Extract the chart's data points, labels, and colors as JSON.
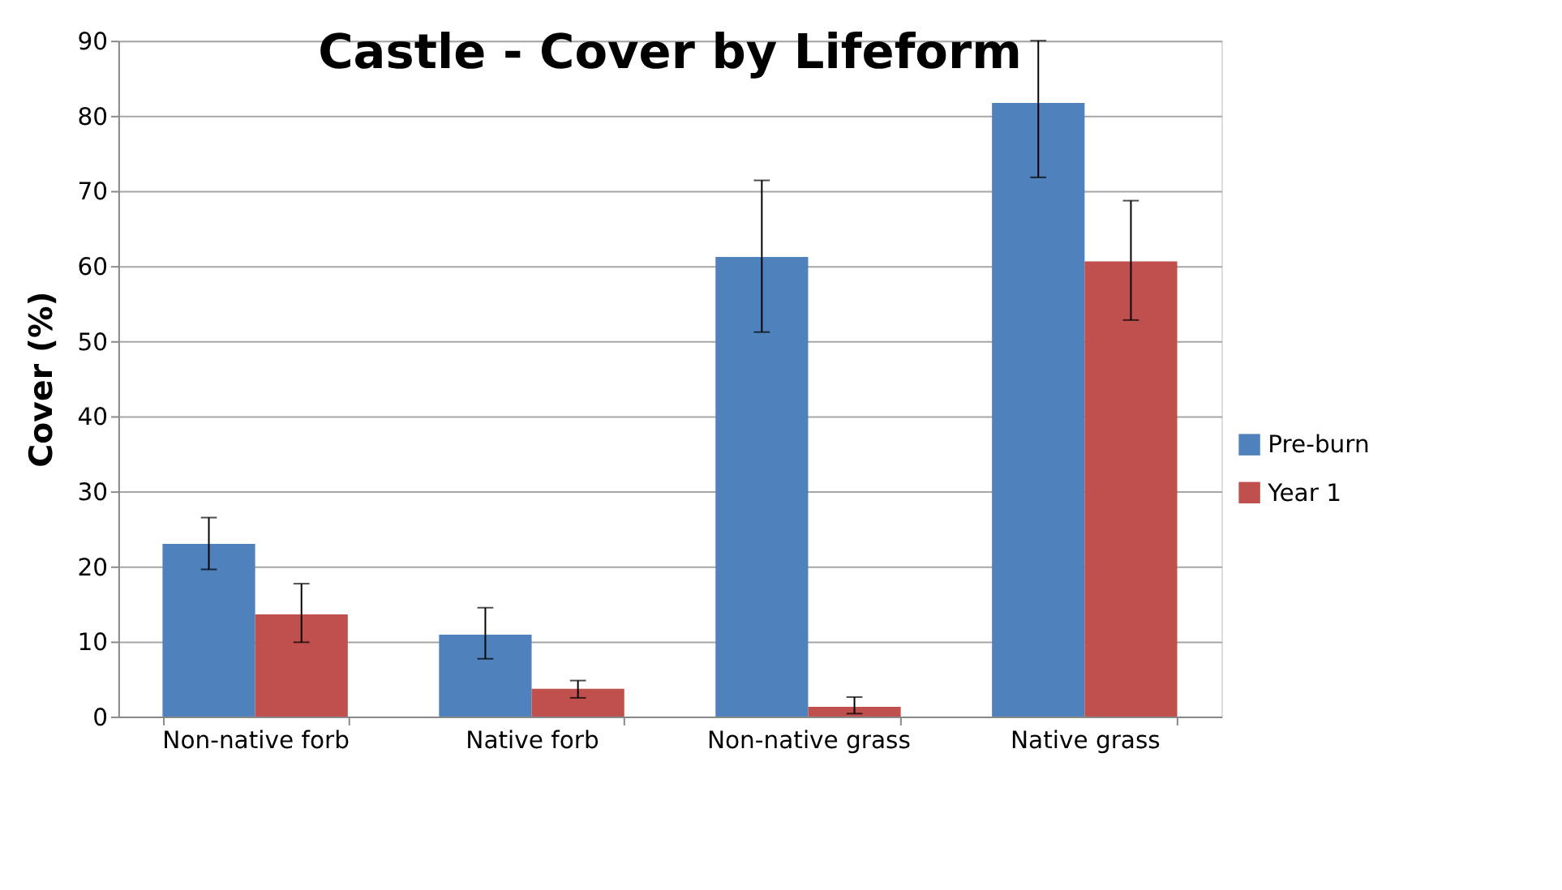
{
  "chart_data": {
    "type": "bar",
    "title": "Castle - Cover by Lifeform",
    "ylabel": "Cover (%)",
    "categories": [
      "Non-native forb",
      "Native forb",
      "Non-native grass",
      "Native grass"
    ],
    "series": [
      {
        "name": "Pre-burn",
        "color": "#4f81bd",
        "values": [
          23.0,
          10.9,
          61.2,
          81.7
        ],
        "errors": [
          [
            19.6,
            26.5
          ],
          [
            7.7,
            14.5
          ],
          [
            51.2,
            71.4
          ],
          [
            71.8,
            90
          ]
        ]
      },
      {
        "name": "Year 1",
        "color": "#c0504d",
        "values": [
          13.6,
          3.7,
          1.3,
          60.6
        ],
        "errors": [
          [
            9.9,
            17.7
          ],
          [
            2.5,
            4.8
          ],
          [
            0.4,
            2.6
          ],
          [
            52.8,
            68.7
          ]
        ]
      }
    ],
    "ylim": [
      0,
      90
    ],
    "yticks": [
      0,
      10,
      20,
      30,
      40,
      50,
      60,
      70,
      80,
      90
    ],
    "grid": "y",
    "legend": "right"
  }
}
